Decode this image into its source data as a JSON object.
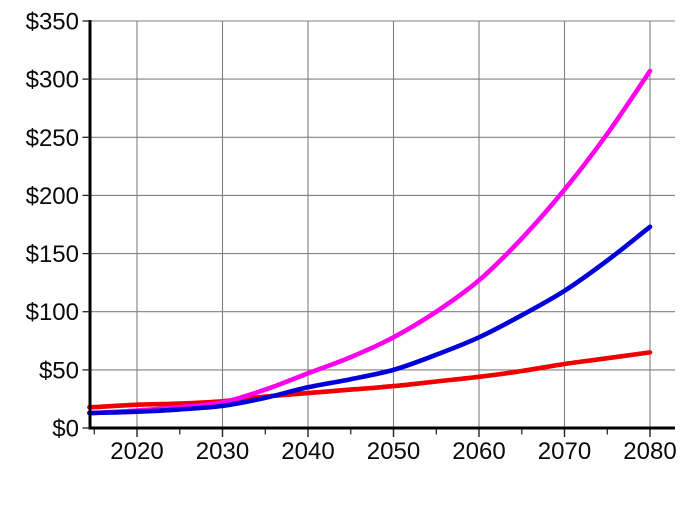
{
  "chart_data": {
    "type": "line",
    "title": "",
    "xlabel": "",
    "ylabel": "",
    "x": [
      2015,
      2020,
      2025,
      2030,
      2035,
      2040,
      2045,
      2050,
      2055,
      2060,
      2065,
      2070,
      2075,
      2080
    ],
    "series": [
      {
        "name": "red-line",
        "color": "#ee0000",
        "values": [
          18,
          20,
          21,
          23,
          27,
          30,
          33,
          36,
          40,
          44,
          49,
          55,
          60,
          65
        ]
      },
      {
        "name": "magenta-line",
        "color": "#ff00ee",
        "values": [
          13,
          15,
          18,
          22,
          33,
          47,
          61,
          78,
          100,
          127,
          163,
          205,
          253,
          307
        ]
      },
      {
        "name": "blue-line",
        "color": "#0000d8",
        "values": [
          13,
          14,
          16,
          19,
          26,
          35,
          42,
          50,
          63,
          78,
          97,
          118,
          144,
          173
        ]
      }
    ],
    "x_ticks_major": [
      2020,
      2030,
      2040,
      2050,
      2060,
      2070,
      2080
    ],
    "x_tick_labels": [
      "2020",
      "2030",
      "2040",
      "2050",
      "2060",
      "2070",
      "2080"
    ],
    "x_ticks_minor": [
      2015,
      2025,
      2035,
      2045,
      2055,
      2065,
      2075
    ],
    "y_ticks": [
      0,
      50,
      100,
      150,
      200,
      250,
      300,
      350
    ],
    "y_tick_labels": [
      "$0",
      "$50",
      "$100",
      "$150",
      "$200",
      "$250",
      "$300",
      "$350"
    ],
    "xlim": [
      2014.5,
      2083.0
    ],
    "ylim": [
      0,
      350
    ],
    "grid": true,
    "legend": "none",
    "colors": {
      "background": "#ffffff",
      "grid": "#808080",
      "axis": "#000000",
      "tick": "#222222",
      "text": "#0a0a0a"
    }
  }
}
